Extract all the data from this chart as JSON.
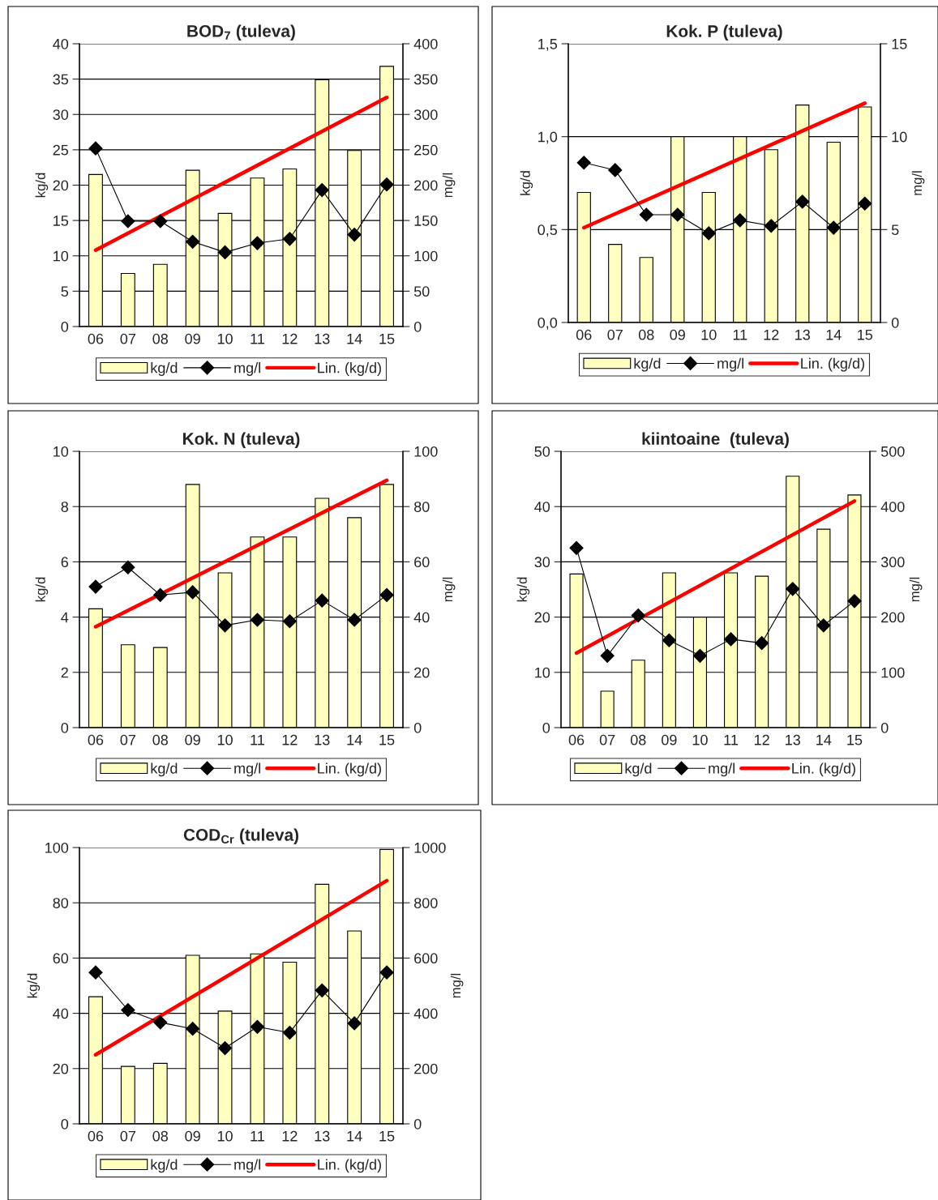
{
  "chart_data": [
    {
      "type": "bar",
      "title": "BOD$_{7}$ (tuleva)",
      "ylabel": "kg/d",
      "y2label": "mg/l",
      "categories": [
        "06",
        "07",
        "08",
        "09",
        "10",
        "11",
        "12",
        "13",
        "14",
        "15"
      ],
      "series": [
        {
          "name": "kg/d",
          "color": "#ffffc0",
          "values": [
            21.5,
            7.5,
            8.8,
            22.1,
            16.0,
            21.0,
            22.3,
            34.9,
            24.9,
            36.8
          ]
        },
        {
          "name": "mg/l",
          "type": "line",
          "axis": "y2",
          "marker": "diamond",
          "color": "#000000",
          "values": [
            252,
            149,
            149,
            120,
            105,
            118,
            124,
            193,
            130,
            201
          ]
        },
        {
          "name": "Lin. (kg/d)",
          "type": "line",
          "color": "#ff0000",
          "x": [
            "06",
            "15"
          ],
          "values": [
            10.8,
            32.4
          ]
        }
      ],
      "ylim": [
        0,
        40
      ],
      "yticks": [
        0,
        5,
        10,
        15,
        20,
        25,
        30,
        35,
        40
      ],
      "y2lim": [
        0,
        400
      ],
      "y2ticks": [
        0,
        50,
        100,
        150,
        200,
        250,
        300,
        350,
        400
      ],
      "grid": "y",
      "legend": "bottom"
    },
    {
      "type": "bar",
      "title": "Kok. P (tuleva)",
      "ylabel": "kg/d",
      "y2label": "mg/l",
      "categories": [
        "06",
        "07",
        "08",
        "09",
        "10",
        "11",
        "12",
        "13",
        "14",
        "15"
      ],
      "series": [
        {
          "name": "kg/d",
          "color": "#ffffc0",
          "values": [
            0.7,
            0.42,
            0.35,
            1.0,
            0.7,
            1.0,
            0.93,
            1.17,
            0.97,
            1.16
          ]
        },
        {
          "name": "mg/l",
          "type": "line",
          "axis": "y2",
          "marker": "diamond",
          "color": "#000000",
          "values": [
            8.6,
            8.2,
            5.8,
            5.8,
            4.8,
            5.5,
            5.2,
            6.5,
            5.1,
            6.4
          ]
        },
        {
          "name": "Lin. (kg/d)",
          "type": "line",
          "color": "#ff0000",
          "x": [
            "06",
            "15"
          ],
          "values": [
            0.51,
            1.18
          ]
        }
      ],
      "ylim": [
        0,
        1.5
      ],
      "yticks": [
        {
          "value": 0,
          "label": "0,0"
        },
        {
          "value": 0.5,
          "label": "0,5"
        },
        {
          "value": 1.0,
          "label": "1,0"
        },
        {
          "value": 1.5,
          "label": "1,5"
        }
      ],
      "y2lim": [
        0,
        15
      ],
      "y2ticks": [
        0,
        5,
        10,
        15
      ],
      "grid": "y",
      "legend": "bottom"
    },
    {
      "type": "bar",
      "title": "Kok. N (tuleva)",
      "ylabel": "kg/d",
      "y2label": "mg/l",
      "categories": [
        "06",
        "07",
        "08",
        "09",
        "10",
        "11",
        "12",
        "13",
        "14",
        "15"
      ],
      "series": [
        {
          "name": "kg/d",
          "color": "#ffffc0",
          "values": [
            4.3,
            3.0,
            2.9,
            8.8,
            5.6,
            6.9,
            6.9,
            8.3,
            7.6,
            8.8
          ]
        },
        {
          "name": "mg/l",
          "type": "line",
          "axis": "y2",
          "marker": "diamond",
          "color": "#000000",
          "values": [
            51,
            58,
            48,
            49,
            37,
            39,
            38.5,
            46,
            39,
            48
          ]
        },
        {
          "name": "Lin. (kg/d)",
          "type": "line",
          "color": "#ff0000",
          "x": [
            "06",
            "15"
          ],
          "values": [
            3.65,
            8.95
          ]
        }
      ],
      "ylim": [
        0,
        10
      ],
      "yticks": [
        0,
        2,
        4,
        6,
        8,
        10
      ],
      "y2lim": [
        0,
        100
      ],
      "y2ticks": [
        0,
        20,
        40,
        60,
        80,
        100
      ],
      "grid": "y",
      "legend": "bottom"
    },
    {
      "type": "bar",
      "title": "kiintoaine  (tuleva)",
      "ylabel": "kg/d",
      "y2label": "mg/l",
      "categories": [
        "06",
        "07",
        "08",
        "09",
        "10",
        "11",
        "12",
        "13",
        "14",
        "15"
      ],
      "series": [
        {
          "name": "kg/d",
          "color": "#ffffc0",
          "values": [
            27.8,
            6.6,
            12.2,
            28.0,
            20.0,
            28.0,
            27.4,
            45.5,
            35.9,
            42.1
          ]
        },
        {
          "name": "mg/l",
          "type": "line",
          "axis": "y2",
          "marker": "diamond",
          "color": "#000000",
          "values": [
            325,
            130,
            203,
            158,
            130,
            160,
            153,
            251,
            185,
            229
          ]
        },
        {
          "name": "Lin. (kg/d)",
          "type": "line",
          "color": "#ff0000",
          "x": [
            "06",
            "15"
          ],
          "values": [
            13.5,
            41.0
          ]
        }
      ],
      "ylim": [
        0,
        50
      ],
      "yticks": [
        0,
        10,
        20,
        30,
        40,
        50
      ],
      "y2lim": [
        0,
        500
      ],
      "y2ticks": [
        0,
        100,
        200,
        300,
        400,
        500
      ],
      "grid": "y",
      "legend": "bottom"
    },
    {
      "type": "bar",
      "title": "COD$_{Cr}$ (tuleva)",
      "ylabel": "kg/d",
      "y2label": "mg/l",
      "categories": [
        "06",
        "07",
        "08",
        "09",
        "10",
        "11",
        "12",
        "13",
        "14",
        "15"
      ],
      "series": [
        {
          "name": "kg/d",
          "color": "#ffffc0",
          "values": [
            46,
            20.8,
            21.9,
            61,
            40.8,
            61.5,
            58.5,
            86.7,
            69.8,
            99.3
          ]
        },
        {
          "name": "mg/l",
          "type": "line",
          "axis": "y2",
          "marker": "diamond",
          "color": "#000000",
          "values": [
            548,
            412,
            367,
            344,
            274,
            351,
            330,
            483,
            364,
            548
          ]
        },
        {
          "name": "Lin. (kg/d)",
          "type": "line",
          "color": "#ff0000",
          "x": [
            "06",
            "15"
          ],
          "values": [
            25,
            88
          ]
        }
      ],
      "ylim": [
        0,
        100
      ],
      "yticks": [
        0,
        20,
        40,
        60,
        80,
        100
      ],
      "y2lim": [
        0,
        1000
      ],
      "y2ticks": [
        0,
        200,
        400,
        600,
        800,
        1000
      ],
      "grid": "y",
      "legend": "bottom"
    }
  ]
}
